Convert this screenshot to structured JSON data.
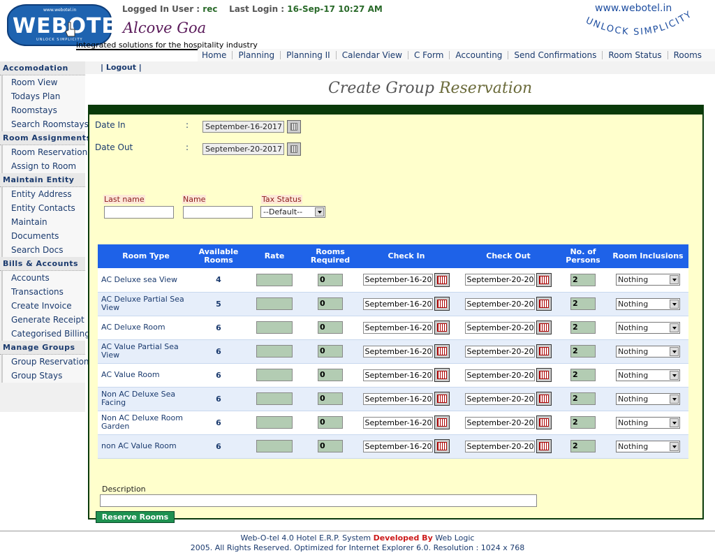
{
  "header": {
    "logo_top": "www.webotel.in",
    "logo_text": "WEBOTEL",
    "logo_sub": "UNLOCK SIMPLICITY",
    "logged_in_label": "Logged In User :",
    "logged_in_user": "rec",
    "last_login_label": "Last Login :",
    "last_login_value": "16-Sep-17 10:27 AM",
    "company": "Alcove Goa",
    "tagline": "integrated solutions for the hospitality industry",
    "brand_url": "www.webotel.in",
    "brand_slogan": "UNLOCK SIMPLICITY"
  },
  "topnav": [
    "Home",
    "Planning",
    "Planning II",
    "Calendar View",
    "C Form",
    "Accounting",
    "Send Confirmations",
    "Room Status",
    "Rooms"
  ],
  "logout": "Logout",
  "sidebar": [
    {
      "title": "Accomodation",
      "items": [
        "Room View",
        "Todays Plan",
        "Roomstays",
        "Search Roomstays"
      ]
    },
    {
      "title": "Room Assignments",
      "items": [
        "Room Reservation",
        "Assign to Room"
      ]
    },
    {
      "title": "Maintain Entity",
      "items": [
        "Entity Address",
        "Entity Contacts",
        "Maintain",
        "Documents",
        "Search Docs"
      ]
    },
    {
      "title": "Bills & Accounts",
      "items": [
        "Accounts",
        "Transactions",
        "Create Invoice",
        "Generate Receipt",
        "Categorised Billing"
      ]
    },
    {
      "title": "Manage Groups",
      "items": [
        "Group Reservation",
        "Group Stays"
      ]
    }
  ],
  "page_title": {
    "part1": "Create Group",
    "part2": "Reservation"
  },
  "form": {
    "date_in_label": "Date In",
    "date_in_value": "September-16-2017",
    "date_out_label": "Date Out",
    "date_out_value": "September-20-2017",
    "colon": ":",
    "last_name_label": "Last name",
    "name_label": "Name",
    "tax_status_label": "Tax Status",
    "tax_status_value": "--Default--",
    "description_label": "Description",
    "reserve_button": "Reserve Rooms"
  },
  "table": {
    "headers": [
      "Room Type",
      "Available Rooms",
      "Rate",
      "Rooms Required",
      "Check In",
      "Check Out",
      "No. of Persons",
      "Room Inclusions"
    ],
    "rows": [
      {
        "room_type": "AC Deluxe sea View",
        "available": "4",
        "required": "0",
        "check_in": "September-16-20",
        "check_out": "September-20-20",
        "persons": "2",
        "inclusions": "Nothing"
      },
      {
        "room_type": "AC Deluxe Partial Sea View",
        "available": "5",
        "required": "0",
        "check_in": "September-16-20",
        "check_out": "September-20-20",
        "persons": "2",
        "inclusions": "Nothing"
      },
      {
        "room_type": "AC Deluxe Room",
        "available": "6",
        "required": "0",
        "check_in": "September-16-20",
        "check_out": "September-20-20",
        "persons": "2",
        "inclusions": "Nothing"
      },
      {
        "room_type": "AC Value Partial Sea View",
        "available": "6",
        "required": "0",
        "check_in": "September-16-20",
        "check_out": "September-20-20",
        "persons": "2",
        "inclusions": "Nothing"
      },
      {
        "room_type": "AC Value Room",
        "available": "6",
        "required": "0",
        "check_in": "September-16-20",
        "check_out": "September-20-20",
        "persons": "2",
        "inclusions": "Nothing"
      },
      {
        "room_type": "Non AC Deluxe Sea Facing",
        "available": "6",
        "required": "0",
        "check_in": "September-16-20",
        "check_out": "September-20-20",
        "persons": "2",
        "inclusions": "Nothing"
      },
      {
        "room_type": "Non AC Deluxe Room Garden",
        "available": "6",
        "required": "0",
        "check_in": "September-16-20",
        "check_out": "September-20-20",
        "persons": "2",
        "inclusions": "Nothing"
      },
      {
        "room_type": "non AC Value Room",
        "available": "6",
        "required": "0",
        "check_in": "September-16-20",
        "check_out": "September-20-20",
        "persons": "2",
        "inclusions": "Nothing"
      }
    ]
  },
  "footer": {
    "line1_a": "Web-O-tel 4.0 Hotel E.R.P. System",
    "line1_b": "Developed By",
    "line1_c": "Web Logic",
    "line2": "2005. All Rights Reserved. Optimized for Internet Explorer 6.0.  Resolution : 1024 x 768"
  },
  "colors": {
    "accent": "#1e62e8",
    "panel_bg": "#ffffcc",
    "panel_border": "#0a3a0a",
    "button": "#1e9150",
    "developed_by": "#cc1a1a"
  },
  "icons": [
    "calendar-icon",
    "dropdown-arrow-icon",
    "hand-pointer-icon"
  ]
}
